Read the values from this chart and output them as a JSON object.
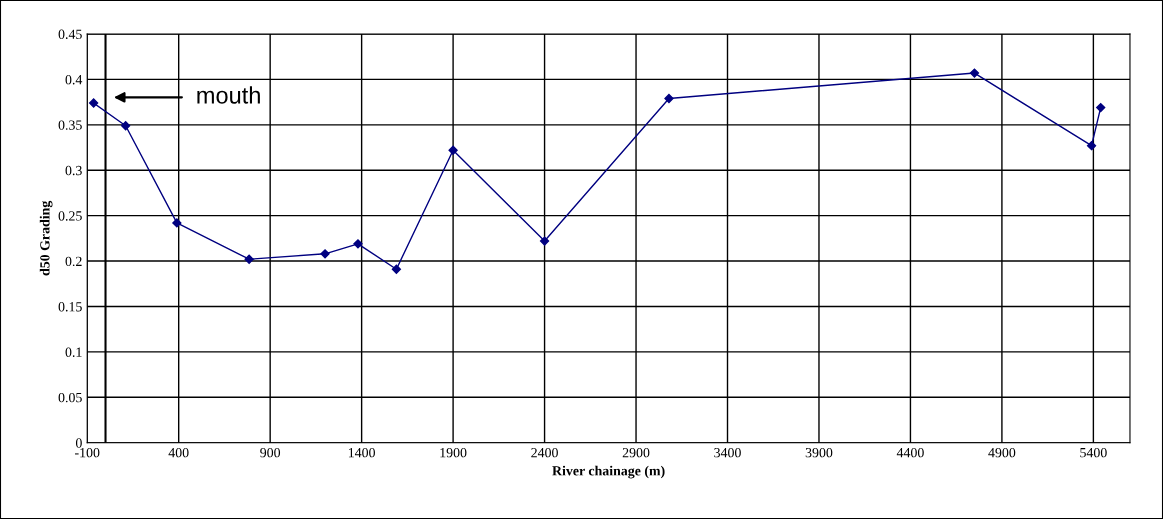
{
  "chart_data": {
    "type": "line",
    "xlabel": "River chainage (m)",
    "ylabel": "d50 Grading",
    "x": [
      -65,
      110,
      390,
      785,
      1200,
      1380,
      1590,
      1900,
      2400,
      3080,
      4750,
      5390,
      5440
    ],
    "series": [
      {
        "color": "#000080",
        "values": [
          0.374,
          0.349,
          0.242,
          0.202,
          0.208,
          0.219,
          0.191,
          0.322,
          0.222,
          0.379,
          0.407,
          0.327,
          0.369
        ]
      }
    ],
    "xlim": [
      -100,
      5600
    ],
    "xticks": [
      -100,
      400,
      900,
      1400,
      1900,
      2400,
      2900,
      3400,
      3900,
      4400,
      4900,
      5400
    ],
    "ylim": [
      0,
      0.45
    ],
    "yticks": [
      0,
      0.05,
      0.1,
      0.15,
      0.2,
      0.25,
      0.3,
      0.35,
      0.4,
      0.45
    ],
    "ref_lines": [
      {
        "axis": "x",
        "value": 0,
        "color": "#000000"
      }
    ],
    "annotations": [
      "mouth"
    ],
    "grid": true,
    "marker": "diamond",
    "line_style": "solid"
  }
}
